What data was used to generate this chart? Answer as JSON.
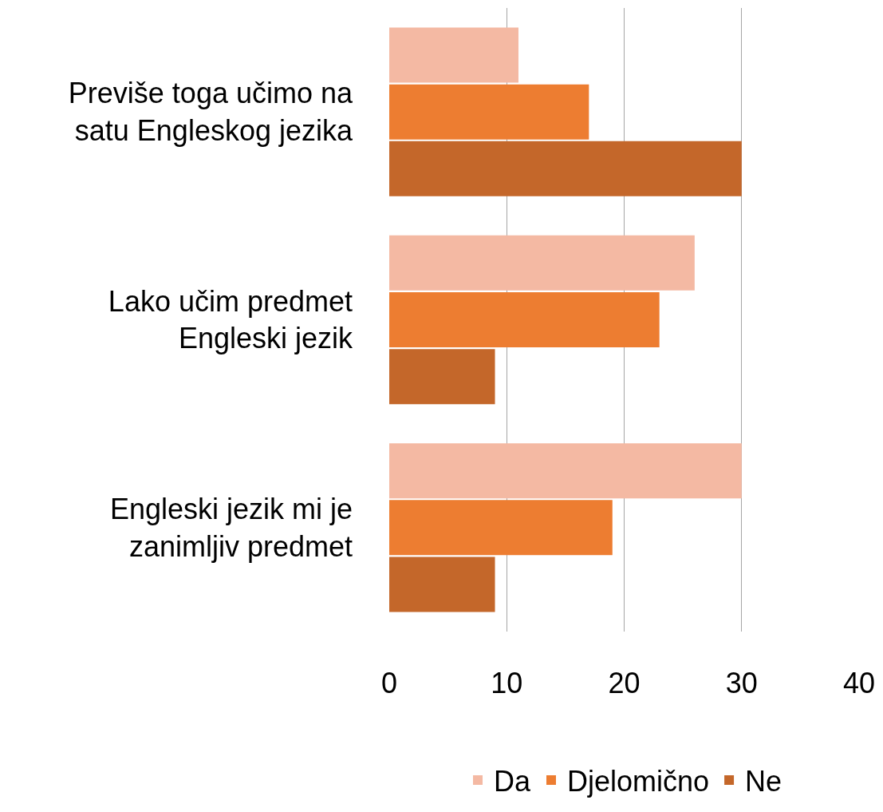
{
  "chart_data": {
    "type": "bar",
    "orientation": "horizontal",
    "categories": [
      "Previše toga učimo na satu Engleskog jezika",
      "Lako učim predmet Engleski jezik",
      "Engleski jezik mi je zanimljiv predmet"
    ],
    "series": [
      {
        "name": "Da",
        "color": "#f4b9a3",
        "values": [
          11,
          26,
          30
        ]
      },
      {
        "name": "Djelomično",
        "color": "#ed7d31",
        "values": [
          17,
          23,
          19
        ]
      },
      {
        "name": "Ne",
        "color": "#c4672a",
        "values": [
          30,
          9,
          9
        ]
      }
    ],
    "xlim": [
      0,
      40
    ],
    "xticks": [
      0,
      10,
      20,
      30,
      40
    ],
    "grid": "x",
    "legend": "bottom"
  }
}
